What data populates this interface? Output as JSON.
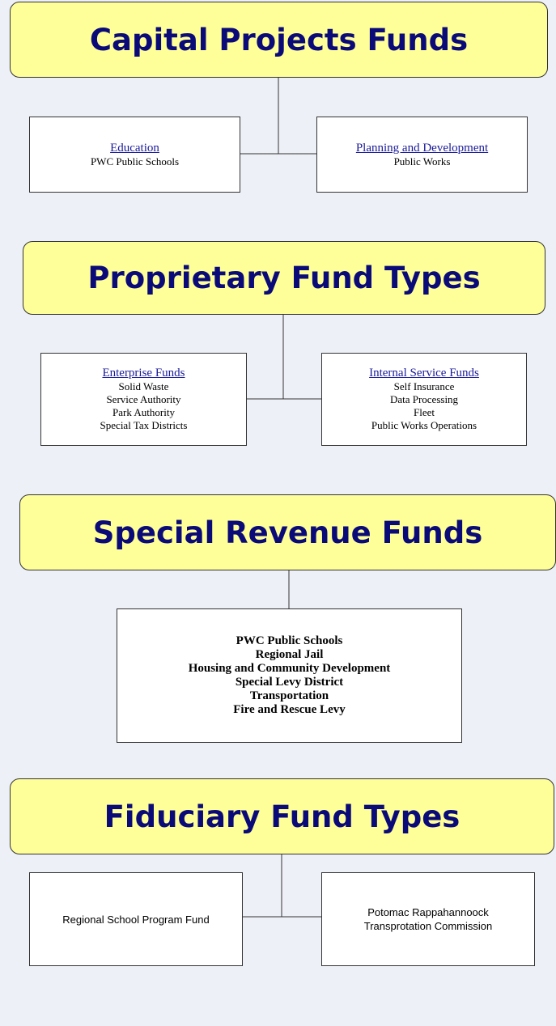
{
  "sections": [
    {
      "title": "Capital Projects Funds",
      "boxes": [
        {
          "heading": "Education",
          "items": [
            "PWC Public Schools"
          ]
        },
        {
          "heading": "Planning and Development",
          "items": [
            "Public Works"
          ]
        }
      ]
    },
    {
      "title": "Proprietary Fund Types",
      "boxes": [
        {
          "heading": "Enterprise Funds",
          "items": [
            "Solid Waste",
            "Service Authority",
            "Park Authority",
            "Special Tax Districts"
          ]
        },
        {
          "heading": "Internal Service Funds",
          "items": [
            "Self Insurance",
            "Data Processing",
            "Fleet",
            "Public Works Operations"
          ]
        }
      ]
    },
    {
      "title": "Special Revenue Funds",
      "boxes": [
        {
          "items": [
            "PWC Public Schools",
            "Regional Jail",
            "Housing and Community Development",
            "Special Levy District",
            "Transportation",
            "Fire and Rescue Levy"
          ]
        }
      ]
    },
    {
      "title": "Fiduciary Fund Types",
      "boxes": [
        {
          "items": [
            "Regional School Program Fund"
          ]
        },
        {
          "items": [
            "Potomac Rappahannoock",
            "Transprotation Commission"
          ]
        }
      ]
    }
  ]
}
